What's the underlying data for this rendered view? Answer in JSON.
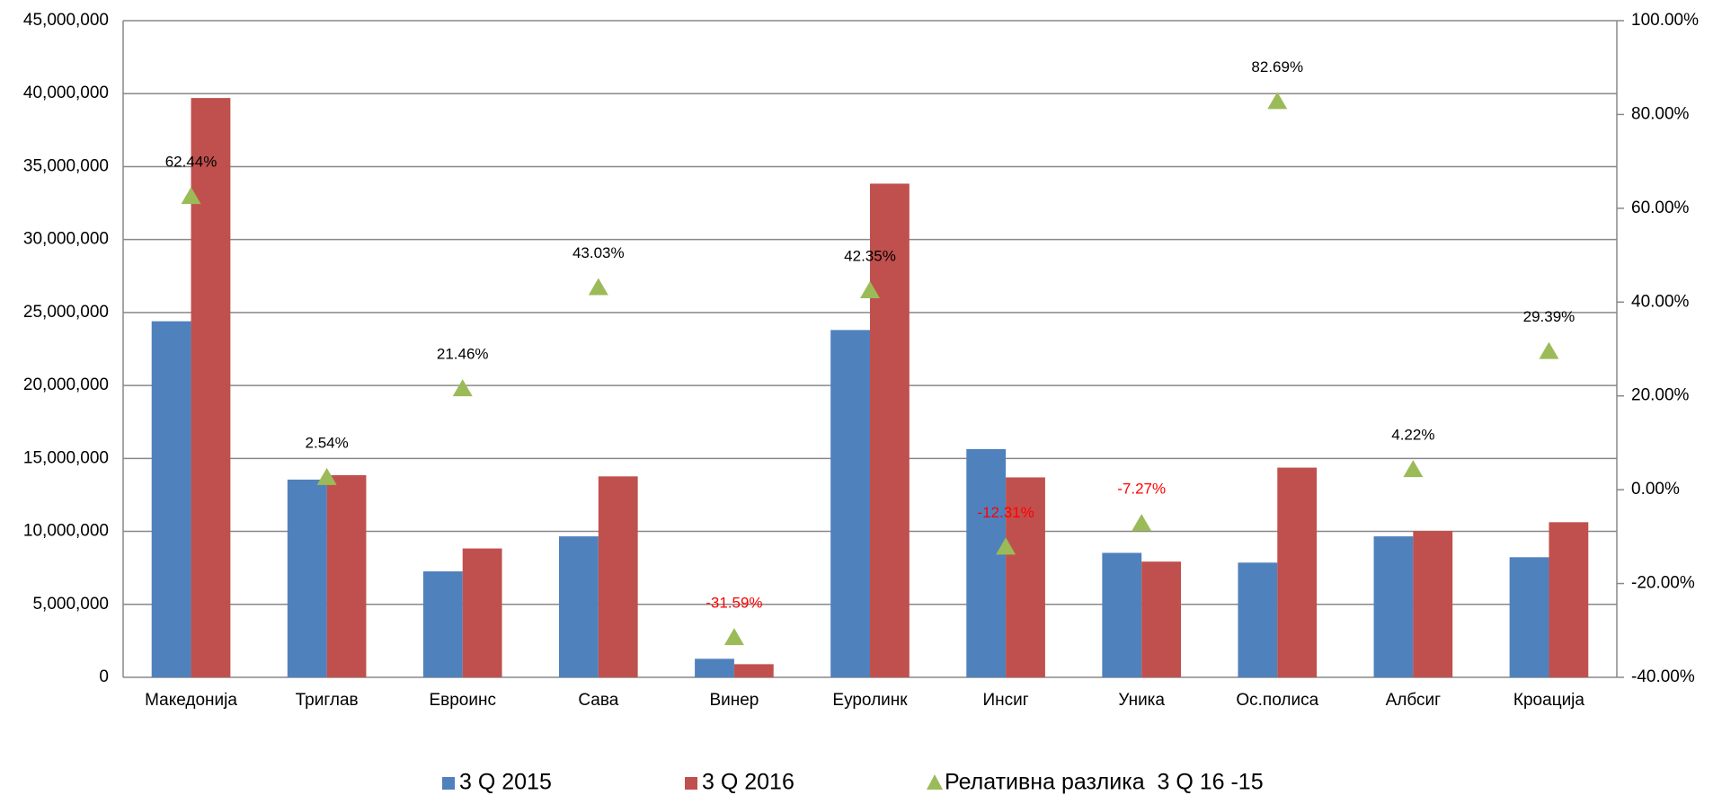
{
  "chart_data": {
    "type": "bar",
    "categories": [
      "Македонија",
      "Триглав",
      "Евроинс",
      "Сава",
      "Винер",
      "Еуролинк",
      "Инсиг",
      "Уника",
      "Ос.полиса",
      "Албсиг",
      "Кроација"
    ],
    "series": [
      {
        "name": "3 Q 2015",
        "color": "#4f81bd",
        "values": [
          24400000,
          13550000,
          7260000,
          9660000,
          1270000,
          23800000,
          15640000,
          8530000,
          7860000,
          9660000,
          8230000
        ]
      },
      {
        "name": "3 Q 2016",
        "color": "#c0504d",
        "values": [
          39700000,
          13850000,
          8830000,
          13770000,
          900000,
          33830000,
          13700000,
          7930000,
          14370000,
          10030000,
          10630000
        ]
      },
      {
        "name": "Релативна разлика  3 Q 16 -15",
        "color": "#9bbb59",
        "type": "scatter",
        "axis": "y2",
        "marker": "triangle",
        "values": [
          62.44,
          2.54,
          21.46,
          43.03,
          -31.59,
          42.35,
          -12.31,
          -7.27,
          82.69,
          4.22,
          29.39
        ],
        "value_labels": [
          "62.44%",
          "2.54%",
          "21.46%",
          "43.03%",
          "-31.59%",
          "42.35%",
          "-12.31%",
          "-7.27%",
          "82.69%",
          "4.22%",
          "29.39%"
        ]
      }
    ],
    "ylim": [
      0,
      45000000
    ],
    "yticks": [
      0,
      {
        "value": 5000000,
        "label": "5,000,000"
      },
      {
        "value": 10000000,
        "label": "10,000,000"
      },
      {
        "value": 15000000,
        "label": "15,000,000"
      },
      {
        "value": 20000000,
        "label": "20,000,000"
      },
      {
        "value": 25000000,
        "label": "25,000,000"
      },
      {
        "value": 30000000,
        "label": "30,000,000"
      },
      {
        "value": 35000000,
        "label": "35,000,000"
      },
      {
        "value": 40000000,
        "label": "40,000,000"
      },
      {
        "value": 45000000,
        "label": "45,000,000"
      }
    ],
    "y2lim": [
      -40,
      100
    ],
    "y2ticks": [
      {
        "value": -40,
        "label": "-40.00%"
      },
      {
        "value": -20,
        "label": "-20.00%"
      },
      {
        "value": 0,
        "label": "0.00%"
      },
      {
        "value": 20,
        "label": "20.00%"
      },
      {
        "value": 40,
        "label": "40.00%"
      },
      {
        "value": 60,
        "label": "60.00%"
      },
      {
        "value": 80,
        "label": "80.00%"
      },
      {
        "value": 100,
        "label": "100.00%"
      }
    ],
    "grid": true,
    "legend": "bottom"
  }
}
